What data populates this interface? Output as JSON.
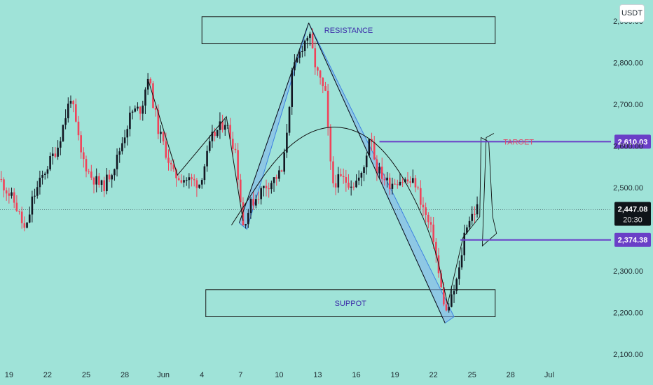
{
  "currency_button": "USDT",
  "colors": {
    "background": "#9fe3d8",
    "up_candle": "#131722",
    "down_candle": "#f0435a",
    "zone_fill": "#9fe3d8",
    "pattern_fill": "#7fb2ef",
    "level_line": "#6a3fc7",
    "badge": "#6a3fc7",
    "price_badge": "#0f1419"
  },
  "chart_data": {
    "type": "candlestick",
    "ylim": [
      2080,
      2950
    ],
    "yticks": [
      "2,900.00",
      "2,800.00",
      "2,700.00",
      "2,600.00",
      "2,500.00",
      "2,300.00",
      "2,200.00",
      "2,100.00"
    ],
    "ytick_values": [
      2900,
      2800,
      2700,
      2600,
      2500,
      2300,
      2200,
      2100
    ],
    "xlim": [
      0,
      47.5
    ],
    "xticks": [
      {
        "label": "19",
        "x": 0.7
      },
      {
        "label": "22",
        "x": 3.7
      },
      {
        "label": "25",
        "x": 6.7
      },
      {
        "label": "28",
        "x": 9.7
      },
      {
        "label": "Jun",
        "x": 12.7
      },
      {
        "label": "4",
        "x": 15.7
      },
      {
        "label": "7",
        "x": 18.7
      },
      {
        "label": "10",
        "x": 21.7
      },
      {
        "label": "13",
        "x": 24.7
      },
      {
        "label": "16",
        "x": 27.7
      },
      {
        "label": "19",
        "x": 30.7
      },
      {
        "label": "22",
        "x": 33.7
      },
      {
        "label": "25",
        "x": 36.7
      },
      {
        "label": "28",
        "x": 39.7
      },
      {
        "label": "Jul",
        "x": 42.7
      }
    ],
    "zones": [
      {
        "label": "RESISTANCE",
        "x0": 15.7,
        "x1": 38.5,
        "y0": 2845,
        "y1": 2910
      },
      {
        "label": "SUPPOT",
        "x0": 16.0,
        "x1": 38.5,
        "y0": 2190,
        "y1": 2255
      }
    ],
    "levels": [
      {
        "label": "TARGET",
        "badge": "2,610.03",
        "value": 2610.03,
        "x0": 29.5
      },
      {
        "label": "",
        "badge": "2,374.38",
        "value": 2374.38,
        "x0": 35.8
      }
    ],
    "last_price": {
      "value": 2447.08,
      "label": "2,447.08",
      "countdown": "20:30"
    },
    "anchors": [
      [
        0,
        2520
      ],
      [
        1.2,
        2460
      ],
      [
        2.0,
        2390
      ],
      [
        2.5,
        2470
      ],
      [
        3.5,
        2540
      ],
      [
        4.5,
        2600
      ],
      [
        5.5,
        2720
      ],
      [
        6.3,
        2580
      ],
      [
        7.0,
        2530
      ],
      [
        8.0,
        2500
      ],
      [
        9.0,
        2560
      ],
      [
        10.2,
        2680
      ],
      [
        11.0,
        2690
      ],
      [
        11.5,
        2770
      ],
      [
        12.3,
        2640
      ],
      [
        13.5,
        2530
      ],
      [
        14.5,
        2520
      ],
      [
        15.5,
        2510
      ],
      [
        16.5,
        2620
      ],
      [
        17.5,
        2660
      ],
      [
        18.3,
        2590
      ],
      [
        18.9,
        2410
      ],
      [
        19.5,
        2460
      ],
      [
        20.5,
        2500
      ],
      [
        21.3,
        2520
      ],
      [
        22.0,
        2540
      ],
      [
        22.7,
        2770
      ],
      [
        23.5,
        2840
      ],
      [
        24.0,
        2870
      ],
      [
        24.6,
        2780
      ],
      [
        25.3,
        2720
      ],
      [
        25.8,
        2510
      ],
      [
        26.5,
        2520
      ],
      [
        27.5,
        2510
      ],
      [
        28.2,
        2530
      ],
      [
        28.8,
        2640
      ],
      [
        29.2,
        2550
      ],
      [
        30.2,
        2510
      ],
      [
        31.0,
        2520
      ],
      [
        32.3,
        2510
      ],
      [
        33.0,
        2440
      ],
      [
        33.7,
        2380
      ],
      [
        34.2,
        2270
      ],
      [
        34.7,
        2200
      ],
      [
        35.2,
        2240
      ],
      [
        35.7,
        2300
      ],
      [
        36.2,
        2410
      ],
      [
        36.8,
        2440
      ],
      [
        37.1,
        2450
      ]
    ],
    "annotations": {
      "triangle_up": [
        [
          18.6,
          2415
        ],
        [
          24.0,
          2895
        ],
        [
          19.2,
          2400
        ]
      ],
      "triangle_down": [
        [
          24.0,
          2895
        ],
        [
          34.6,
          2175
        ],
        [
          35.3,
          2190
        ]
      ],
      "wedge_left": [
        [
          11.5,
          2760
        ],
        [
          13.8,
          2530
        ],
        [
          17.6,
          2670
        ],
        [
          18.9,
          2420
        ]
      ],
      "arc": [
        [
          18.0,
          2410
        ],
        [
          22.0,
          2600
        ],
        [
          26.0,
          2660
        ],
        [
          30.0,
          2600
        ],
        [
          33.5,
          2400
        ],
        [
          34.8,
          2220
        ]
      ],
      "forecast": [
        [
          34.8,
          2220
        ],
        [
          36.0,
          2380
        ],
        [
          37.3,
          2430
        ],
        [
          37.4,
          2620
        ],
        [
          38.0,
          2610
        ],
        [
          38.3,
          2430
        ],
        [
          38.6,
          2390
        ],
        [
          37.5,
          2360
        ],
        [
          37.8,
          2620
        ],
        [
          38.4,
          2630
        ]
      ]
    }
  }
}
